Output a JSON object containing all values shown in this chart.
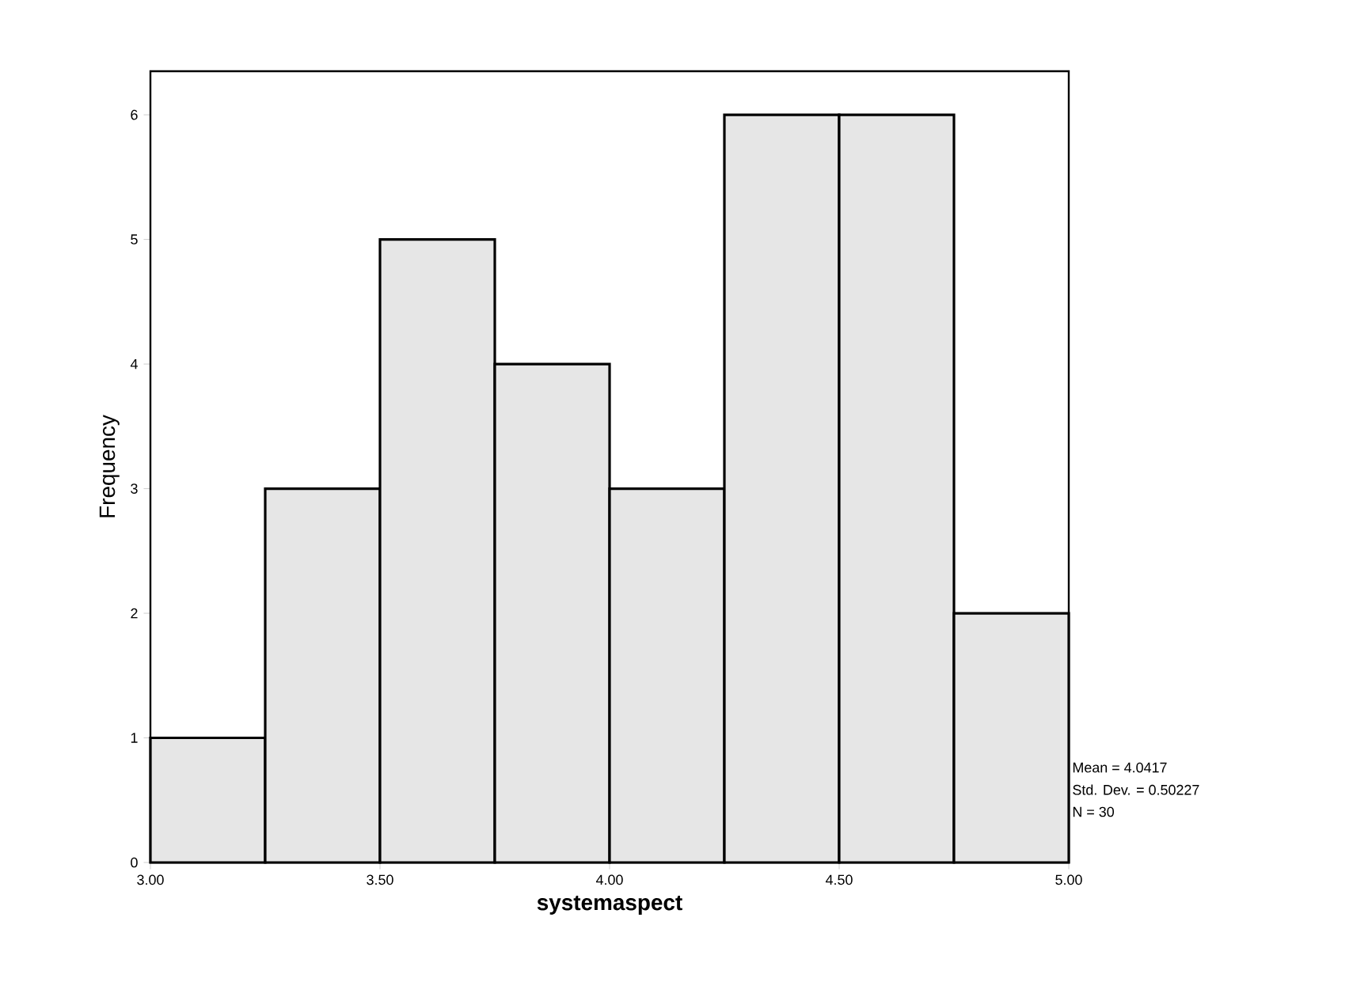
{
  "chart_data": {
    "type": "histogram",
    "xlabel": "systemaspect",
    "ylabel": "Frequency",
    "bins": [
      3.0,
      3.25,
      3.5,
      3.75,
      4.0,
      4.25,
      4.5,
      4.75,
      5.0
    ],
    "values": [
      1,
      3,
      5,
      4,
      3,
      6,
      6,
      2
    ],
    "color": "#e6e6e6",
    "xlim": [
      3.0,
      5.0
    ],
    "xticks": [
      {
        "value": 3.0,
        "label": "3.00"
      },
      {
        "value": 3.5,
        "label": "3.50"
      },
      {
        "value": 4.0,
        "label": "4.00"
      },
      {
        "value": 4.5,
        "label": "4.50"
      },
      {
        "value": 5.0,
        "label": "5.00"
      }
    ],
    "ylim": [
      0,
      6.35
    ],
    "yticks": [
      0,
      1,
      2,
      3,
      4,
      5,
      6
    ],
    "annotations": [
      "Mean = 4.0417",
      "Std. Dev. = 0.50227",
      "N = 30"
    ]
  }
}
